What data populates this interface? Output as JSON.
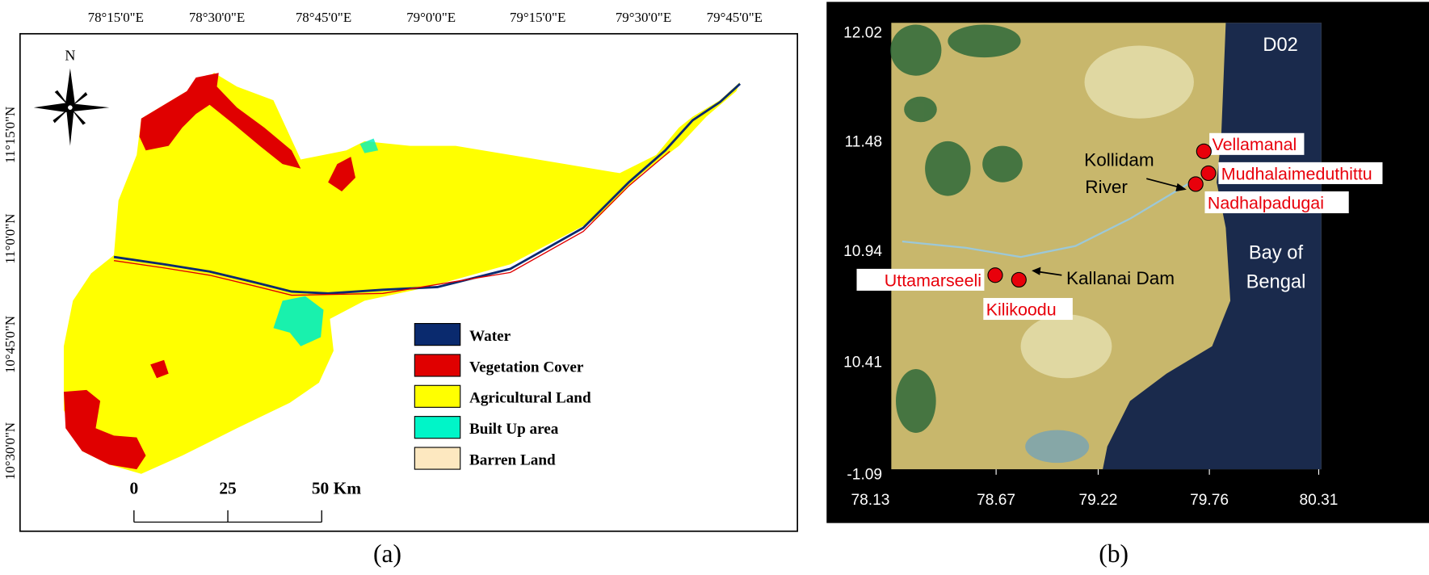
{
  "panel_a": {
    "longitude_labels": [
      "78°15'0\"E",
      "78°30'0\"E",
      "78°45'0\"E",
      "79°0'0\"E",
      "79°15'0\"E",
      "79°30'0\"E",
      "79°45'0\"E"
    ],
    "latitude_labels": [
      "11°15'0\"N",
      "11°0'0\"N",
      "10°45'0\"N",
      "10°30'0\"N"
    ],
    "north_label": "N",
    "legend": [
      "Water",
      "Vegetation Cover",
      "Agricultural Land",
      "Built Up area",
      "Barren Land"
    ],
    "scale_labels": [
      "0",
      "25",
      "50 Km"
    ],
    "caption": "(a)"
  },
  "panel_b": {
    "label": "D02",
    "y_labels": [
      "12.02",
      "11.48",
      "10.94",
      "10.41",
      "-1.09"
    ],
    "x_labels": [
      "78.13",
      "78.67",
      "79.22",
      "79.76",
      "80.31"
    ],
    "sites": [
      "Vellamanal",
      "Mudhalaimeduthittu",
      "Nadhalpadugai",
      "Uttamarseeli",
      "Kilikoodu"
    ],
    "river_label": [
      "Kollidam",
      "River"
    ],
    "dam_label": "Kallanai Dam",
    "sea_label": [
      "Bay of",
      "Bengal"
    ],
    "caption": "(b)"
  }
}
